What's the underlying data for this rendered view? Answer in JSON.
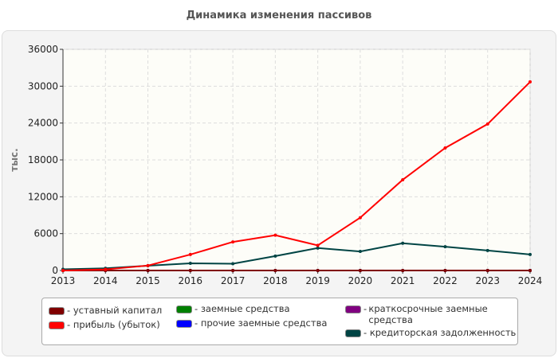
{
  "chart_data": {
    "type": "line",
    "title": "Динамика изменения пассивов",
    "ylabel": "тыс.",
    "xlabel": "",
    "x": [
      "2013",
      "2014",
      "2015",
      "2016",
      "2017",
      "2018",
      "2019",
      "2020",
      "2021",
      "2022",
      "2023",
      "2024"
    ],
    "ylim": [
      0,
      36000
    ],
    "yticks": [
      "0",
      "6000",
      "12000",
      "18000",
      "24000",
      "30000",
      "36000"
    ],
    "grid": true,
    "legend_position": "bottom",
    "series": [
      {
        "name": "уставный капитал",
        "color": "#800000",
        "values": [
          0,
          0,
          0,
          0,
          0,
          0,
          0,
          0,
          0,
          0,
          0,
          0
        ]
      },
      {
        "name": "прибыль (убыток)",
        "color": "#ff0000",
        "values": [
          0,
          170,
          800,
          2600,
          4650,
          5740,
          4090,
          8600,
          14770,
          19950,
          23840,
          30700
        ]
      },
      {
        "name": "заемные средства",
        "color": "#008000",
        "values": [
          0,
          0,
          0,
          0,
          0,
          0,
          0,
          0,
          0,
          0,
          0,
          0
        ]
      },
      {
        "name": "прочие заемные средства",
        "color": "#0000ff",
        "values": [
          0,
          0,
          0,
          0,
          0,
          0,
          0,
          0,
          0,
          0,
          0,
          0
        ]
      },
      {
        "name": "краткосрочные заемные средства",
        "color": "#800080",
        "values": [
          0,
          0,
          0,
          0,
          0,
          0,
          0,
          0,
          0,
          0,
          0,
          0
        ]
      },
      {
        "name": "кредиторская задолженность",
        "color": "#004444",
        "values": [
          200,
          350,
          780,
          1170,
          1100,
          2350,
          3650,
          3100,
          4430,
          3870,
          3260,
          2600
        ]
      }
    ]
  }
}
